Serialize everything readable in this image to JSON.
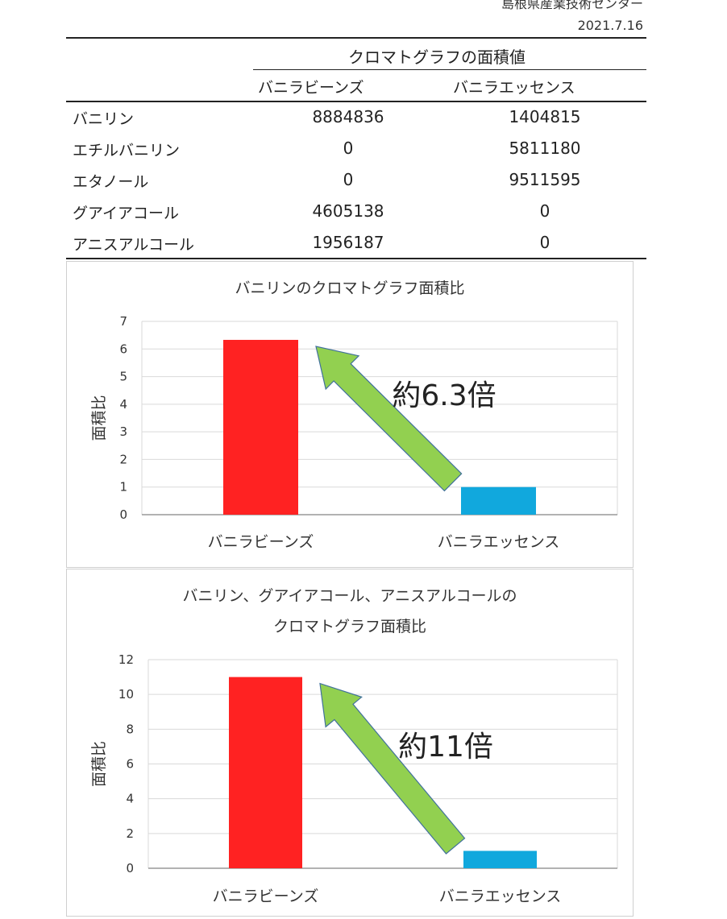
{
  "header": {
    "organization": "島根県産業技術センター",
    "date": "2021.7.16"
  },
  "table": {
    "group_header": "クロマトグラフの面積値",
    "columns": [
      "バニラビーンズ",
      "バニラエッセンス"
    ],
    "rows": [
      {
        "compound": "バニリン",
        "beans": "8884836",
        "essence": "1404815"
      },
      {
        "compound": "エチルバニリン",
        "beans": "0",
        "essence": "5811180"
      },
      {
        "compound": "エタノール",
        "beans": "0",
        "essence": "9511595"
      },
      {
        "compound": "グアイアコール",
        "beans": "4605138",
        "essence": "0"
      },
      {
        "compound": "アニスアルコール",
        "beans": "1956187",
        "essence": "0"
      }
    ]
  },
  "chart_data": [
    {
      "type": "bar",
      "title": "バニリンのクロマトグラフ面積比",
      "ylabel": "面積比",
      "categories": [
        "バニラビーンズ",
        "バニラエッセンス"
      ],
      "values": [
        6.33,
        1
      ],
      "ylim": [
        0,
        7
      ],
      "yticks": [
        "0",
        "1",
        "2",
        "3",
        "4",
        "5",
        "6",
        "7"
      ],
      "bar_colors": [
        "#ff2222",
        "#11a8dd"
      ],
      "grid": true,
      "annotation": "約6.3倍",
      "arrow_color": "#92d050"
    },
    {
      "type": "bar",
      "title": "バニリン、グアイアコール、アニスアルコールの",
      "subtitle": "クロマトグラフ面積比",
      "ylabel": "面積比",
      "categories": [
        "バニラビーンズ",
        "バニラエッセンス"
      ],
      "values": [
        11,
        1
      ],
      "ylim": [
        0,
        12
      ],
      "yticks": [
        "0",
        "2",
        "4",
        "6",
        "8",
        "10",
        "12"
      ],
      "bar_colors": [
        "#ff2222",
        "#11a8dd"
      ],
      "grid": true,
      "annotation": "約11倍",
      "arrow_color": "#92d050"
    }
  ]
}
